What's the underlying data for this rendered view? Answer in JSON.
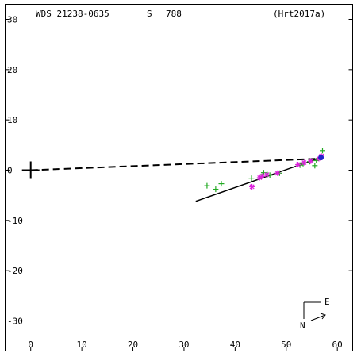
{
  "header": {
    "wds_id": "WDS 21238-0635",
    "discoverer": "S",
    "number": "788",
    "reference": "(Hrt2017a)"
  },
  "compass": {
    "east_label": "E",
    "north_label": "N"
  },
  "chart_data": {
    "type": "scatter",
    "title": "",
    "xlabel": "",
    "ylabel": "",
    "xlim": [
      -5,
      63
    ],
    "ylim": [
      -36,
      33
    ],
    "x_ticks": [
      0,
      10,
      20,
      30,
      40,
      50,
      60
    ],
    "y_ticks": [
      30,
      20,
      10,
      0,
      -10,
      -20,
      -30
    ],
    "primary_marker": {
      "x": 0,
      "y": 0
    },
    "dashed_line": {
      "from": [
        0,
        0
      ],
      "to": [
        57,
        2.3
      ]
    },
    "solid_line": {
      "from": [
        32.3,
        -6.2
      ],
      "to": [
        57,
        2.6
      ]
    },
    "series": [
      {
        "marker": "plus",
        "color": "#22aa22",
        "points": [
          [
            34.5,
            -3.1
          ],
          [
            36.2,
            -3.8
          ],
          [
            37.3,
            -2.7
          ],
          [
            43.2,
            -1.6
          ],
          [
            45.1,
            -1.3
          ],
          [
            45.6,
            -0.5
          ],
          [
            46.3,
            -0.9
          ],
          [
            46.8,
            -1.0
          ],
          [
            48.7,
            -0.6
          ],
          [
            52.7,
            1.0
          ],
          [
            53.3,
            1.3
          ],
          [
            54.6,
            1.7
          ],
          [
            55.6,
            0.9
          ],
          [
            55.9,
            1.9
          ],
          [
            56.6,
            2.5
          ],
          [
            57.1,
            3.9
          ]
        ]
      },
      {
        "marker": "asterisk",
        "color": "#dd22dd",
        "points": [
          [
            43.3,
            -3.3
          ],
          [
            44.8,
            -1.5
          ],
          [
            45.3,
            -1.2
          ],
          [
            46.2,
            -0.9
          ],
          [
            48.3,
            -0.6
          ],
          [
            52.3,
            1.1
          ],
          [
            53.5,
            1.5
          ],
          [
            54.8,
            1.8
          ],
          [
            56.4,
            2.3
          ],
          [
            56.9,
            2.8
          ]
        ]
      },
      {
        "marker": "dot",
        "color": "#2222cc",
        "points": [
          [
            56.8,
            2.5
          ]
        ]
      }
    ]
  }
}
